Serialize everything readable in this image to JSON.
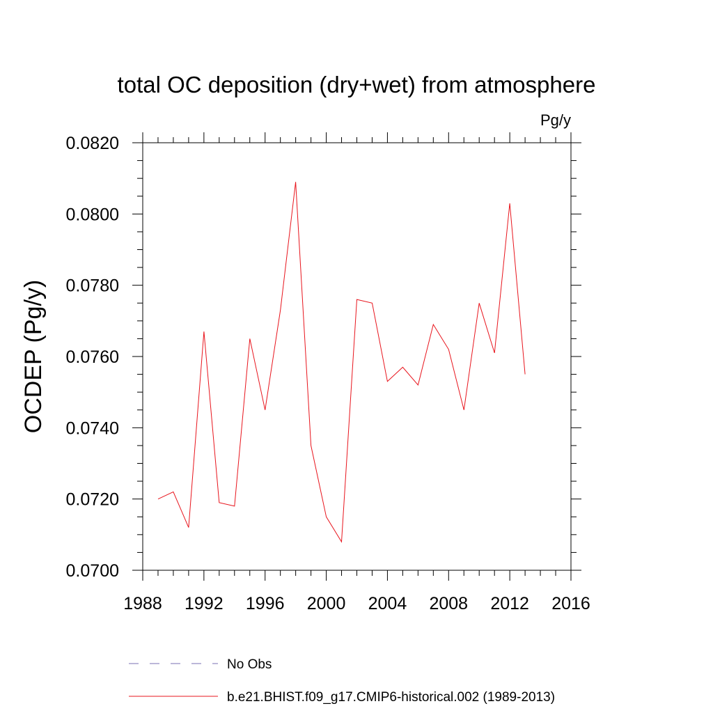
{
  "chart_data": {
    "type": "line",
    "title": "total OC deposition (dry+wet) from atmosphere",
    "units_label": "Pg/y",
    "ylabel": "OCDEP  (Pg/y)",
    "xlabel": "",
    "xlim": [
      1988,
      2016
    ],
    "ylim": [
      0.07,
      0.082
    ],
    "x_ticks": [
      1988,
      1992,
      1996,
      2000,
      2004,
      2008,
      2012,
      2016
    ],
    "x_tick_labels": [
      "1988",
      "1992",
      "1996",
      "2000",
      "2004",
      "2008",
      "2012",
      "2016"
    ],
    "y_ticks": [
      0.07,
      0.072,
      0.074,
      0.076,
      0.078,
      0.08,
      0.082
    ],
    "y_tick_labels": [
      "0.0700",
      "0.0720",
      "0.0740",
      "0.0760",
      "0.0780",
      "0.0800",
      "0.0820"
    ],
    "grid": false,
    "legend_position": "bottom",
    "series": [
      {
        "name": "b.e21.BHIST.f09_g17.CMIP6-historical.002 (1989-2013)",
        "color": "#e8141c",
        "style": "solid",
        "x": [
          1989,
          1990,
          1991,
          1992,
          1993,
          1994,
          1995,
          1996,
          1997,
          1998,
          1999,
          2000,
          2001,
          2002,
          2003,
          2004,
          2005,
          2006,
          2007,
          2008,
          2009,
          2010,
          2011,
          2012,
          2013
        ],
        "y": [
          0.072,
          0.0722,
          0.0712,
          0.0767,
          0.0719,
          0.0718,
          0.0765,
          0.0745,
          0.0773,
          0.0809,
          0.0735,
          0.0715,
          0.0708,
          0.0776,
          0.0775,
          0.0753,
          0.0757,
          0.0752,
          0.0769,
          0.0762,
          0.0745,
          0.0775,
          0.0761,
          0.0803,
          0.0755
        ]
      }
    ],
    "legend": [
      {
        "label": "No Obs",
        "color": "#7a6fb3",
        "style": "dashed"
      },
      {
        "label": "b.e21.BHIST.f09_g17.CMIP6-historical.002 (1989-2013)",
        "color": "#e8141c",
        "style": "solid"
      }
    ]
  }
}
